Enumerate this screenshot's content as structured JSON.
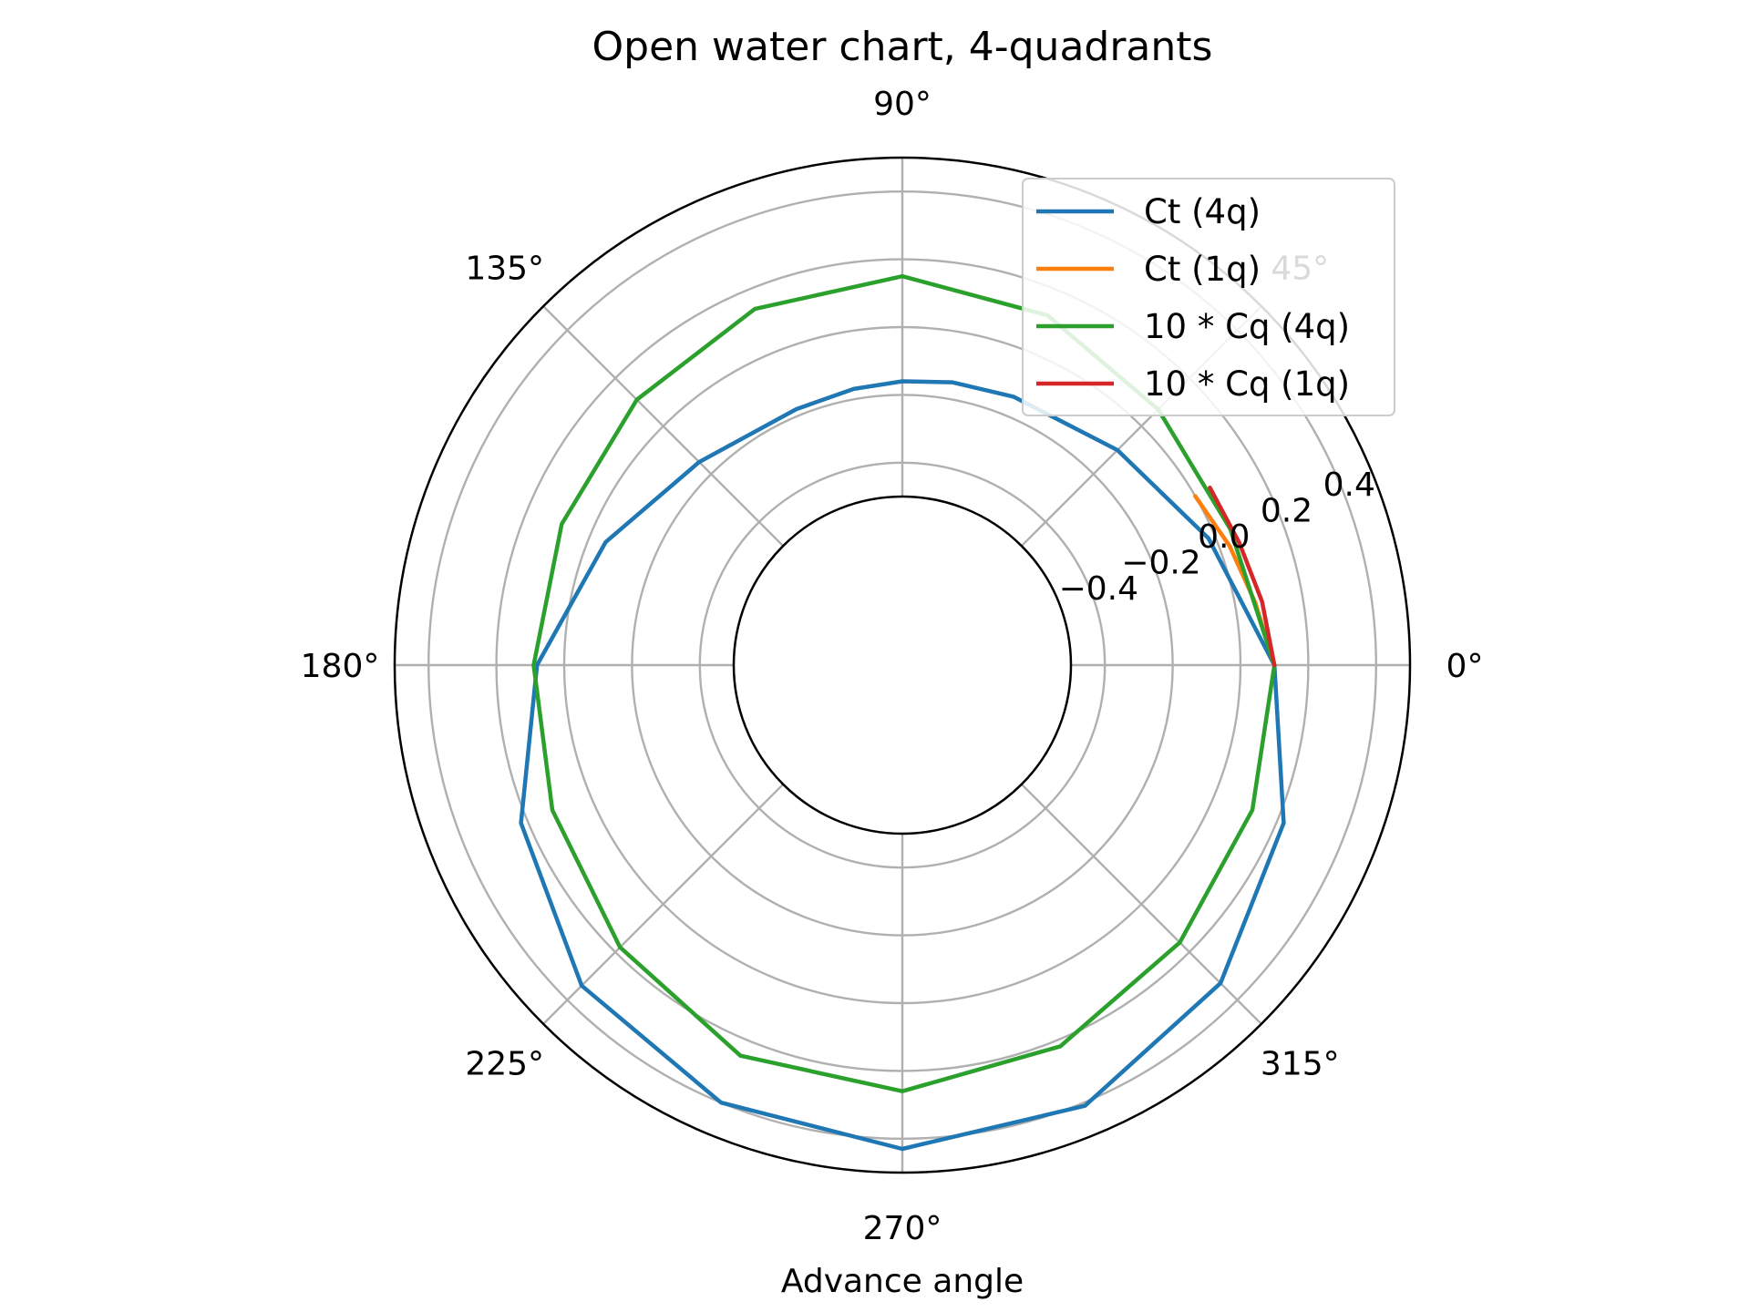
{
  "chart_data": {
    "type": "line",
    "projection": "polar",
    "title": "Open water chart, 4-quadrants",
    "xlabel": "Advance angle",
    "ylabel": "",
    "angle_unit": "degrees",
    "theta_ticks": [
      0,
      45,
      90,
      135,
      180,
      225,
      270,
      315
    ],
    "theta_tick_labels": [
      "0°",
      "45°",
      "90°",
      "135°",
      "180°",
      "225°",
      "270°",
      "315°"
    ],
    "r_ticks": [
      -0.4,
      -0.2,
      0.0,
      0.2,
      0.4
    ],
    "r_tick_labels": [
      "−0.4",
      "−0.2",
      "0.0",
      "0.2",
      "0.4"
    ],
    "r_tick_label_angle_deg": 22.5,
    "rlim": [
      -0.5,
      0.5
    ],
    "grid": true,
    "legend_position": "upper right",
    "series": [
      {
        "name": "Ct (4q)",
        "color": "#1f77b4",
        "theta": [
          0,
          22.5,
          45,
          67.5,
          80,
          90,
          100,
          112.5,
          135,
          157.5,
          180,
          202.5,
          225,
          247.5,
          270,
          292.5,
          315,
          337.5,
          360
        ],
        "r": [
          0.1,
          -0.02,
          -0.1,
          -0.14,
          -0.15,
          -0.16,
          -0.17,
          -0.18,
          -0.15,
          -0.05,
          0.08,
          0.22,
          0.34,
          0.4,
          0.43,
          0.41,
          0.33,
          0.22,
          0.1
        ]
      },
      {
        "name": "Ct (1q)",
        "color": "#ff7f0e",
        "theta": [
          0,
          10,
          20,
          30
        ],
        "r": [
          0.1,
          0.06,
          0.03,
          0.0
        ]
      },
      {
        "name": "10 * Cq (4q)",
        "color": "#2ca02c",
        "theta": [
          0,
          22.5,
          45,
          67.5,
          90,
          112.5,
          135,
          157.5,
          180,
          202.5,
          225,
          247.5,
          270,
          292.5,
          315,
          337.5,
          360
        ],
        "r": [
          0.1,
          0.05,
          0.07,
          0.12,
          0.15,
          0.14,
          0.11,
          0.09,
          0.09,
          0.12,
          0.18,
          0.25,
          0.26,
          0.22,
          0.16,
          0.12,
          0.1
        ]
      },
      {
        "name": "10 * Cq (1q)",
        "color": "#d62728",
        "theta": [
          0,
          10,
          20,
          30
        ],
        "r": [
          0.1,
          0.08,
          0.06,
          0.05
        ]
      }
    ]
  }
}
